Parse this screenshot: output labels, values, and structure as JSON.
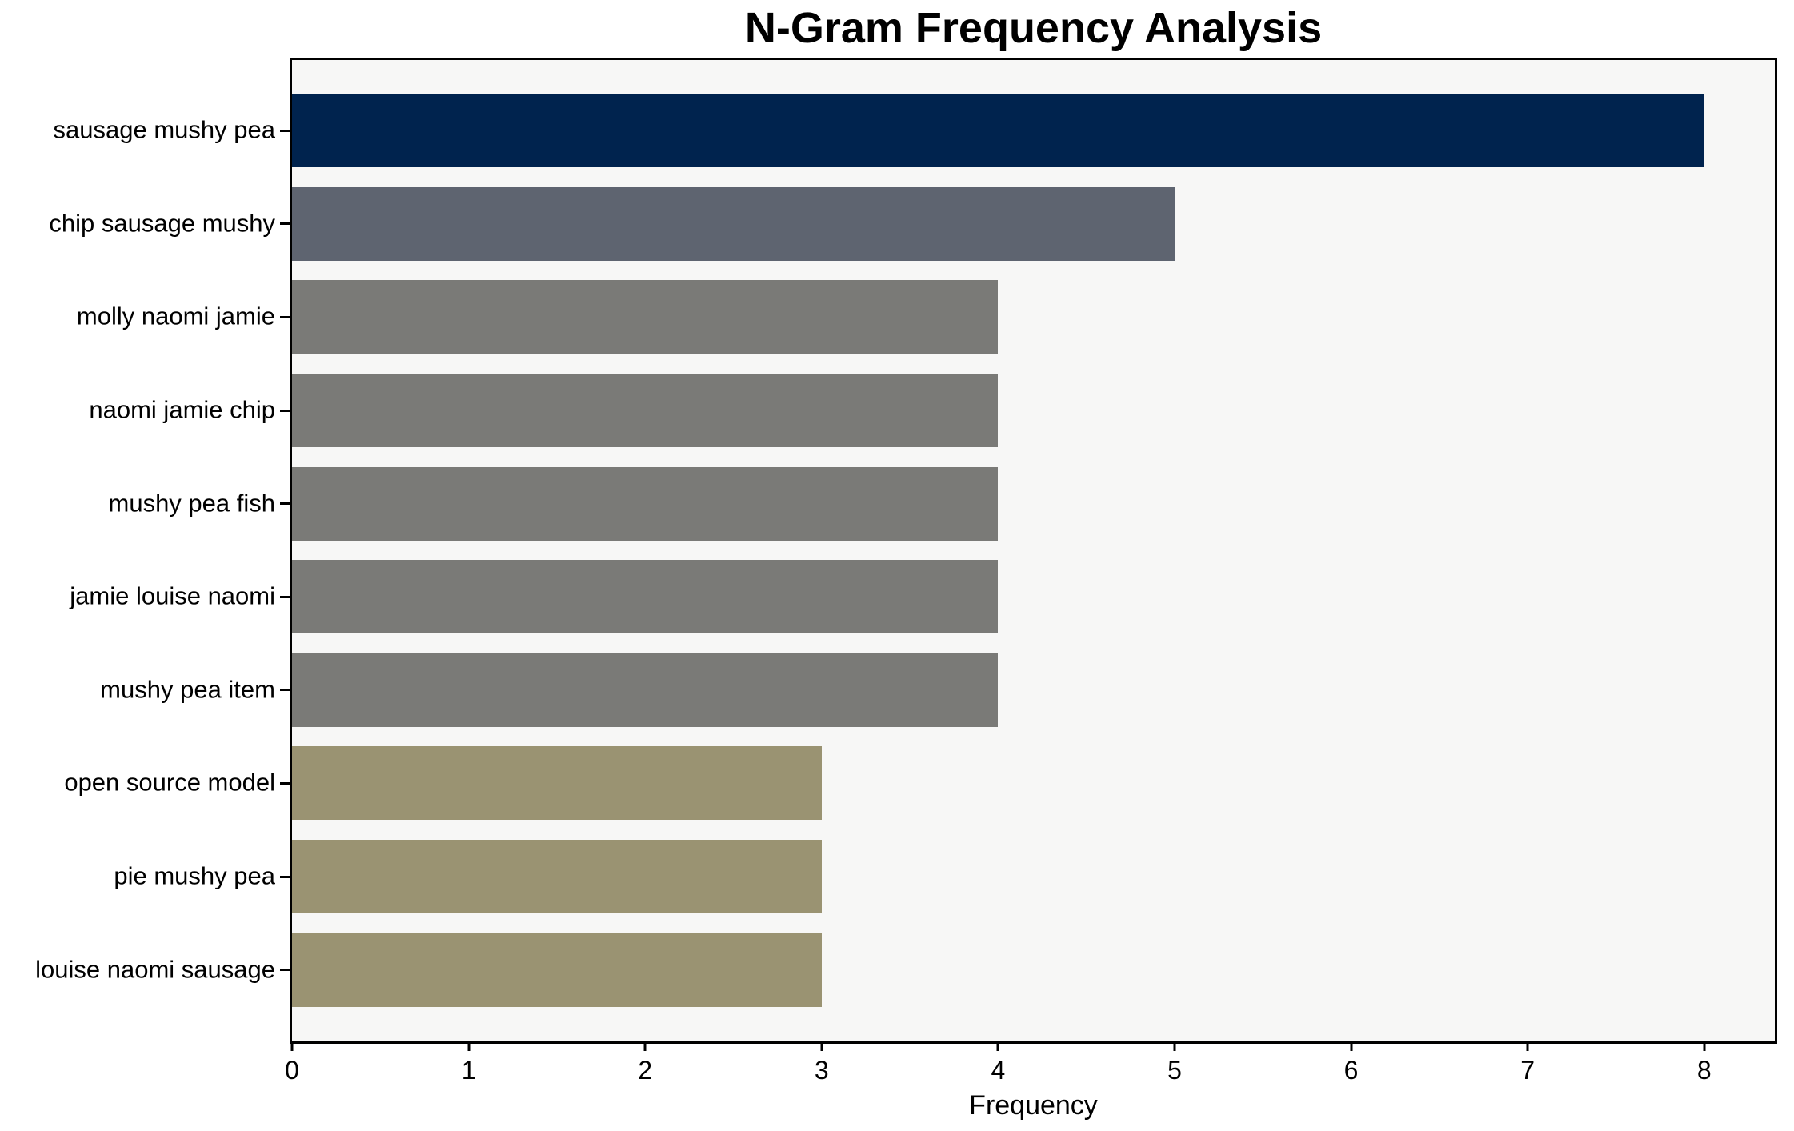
{
  "title": "N-Gram Frequency Analysis",
  "chart_data": {
    "type": "bar",
    "orientation": "horizontal",
    "title": "N-Gram Frequency Analysis",
    "xlabel": "Frequency",
    "ylabel": "",
    "categories": [
      "sausage mushy pea",
      "chip sausage mushy",
      "molly naomi jamie",
      "naomi jamie chip",
      "mushy pea fish",
      "jamie louise naomi",
      "mushy pea item",
      "open source model",
      "pie mushy pea",
      "louise naomi sausage"
    ],
    "values": [
      8,
      5,
      4,
      4,
      4,
      4,
      4,
      3,
      3,
      3
    ],
    "bar_colors": [
      "#00234e",
      "#5e6470",
      "#7a7a77",
      "#7a7a77",
      "#7a7a77",
      "#7a7a77",
      "#7a7a77",
      "#9a9372",
      "#9a9372",
      "#9a9372"
    ],
    "x_ticks": [
      "0",
      "1",
      "2",
      "3",
      "4",
      "5",
      "6",
      "7",
      "8"
    ],
    "xlim": [
      0,
      8.4
    ],
    "grid": false,
    "legend_position": "none",
    "plot_background": "#f7f7f6",
    "figure_background": "#ffffff",
    "axis_color": "#000000"
  }
}
